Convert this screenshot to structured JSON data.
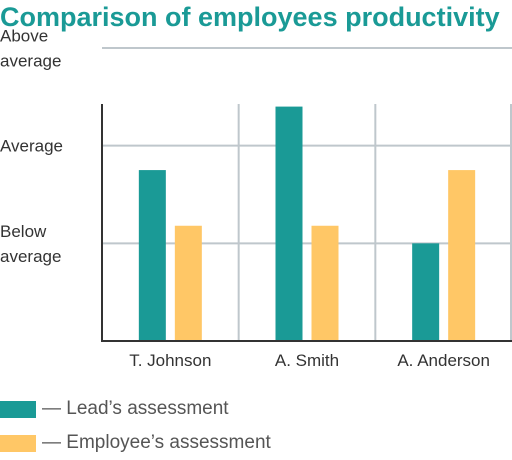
{
  "chart_data": {
    "type": "bar",
    "title": "Comparison of employees productivity",
    "categories": [
      "T. Johnson",
      "A. Smith",
      "A. Anderson"
    ],
    "y_tick_labels": [
      {
        "level": 1,
        "lines": [
          "Below",
          "average"
        ]
      },
      {
        "level": 2,
        "lines": [
          "Average"
        ]
      },
      {
        "level": 3,
        "lines": [
          "Above",
          "average"
        ]
      }
    ],
    "ylim": [
      0,
      3
    ],
    "grid": true,
    "legend_position": "bottom",
    "series": [
      {
        "name": "Lead's assessment",
        "legend_label": "— Lead’s assessment",
        "color": "#1a9a96",
        "values": [
          1.75,
          2.4,
          1.0
        ]
      },
      {
        "name": "Employee's assessment",
        "legend_label": "— Employee’s assessment",
        "color": "#ffc766",
        "values": [
          1.18,
          1.18,
          1.75
        ]
      }
    ]
  }
}
